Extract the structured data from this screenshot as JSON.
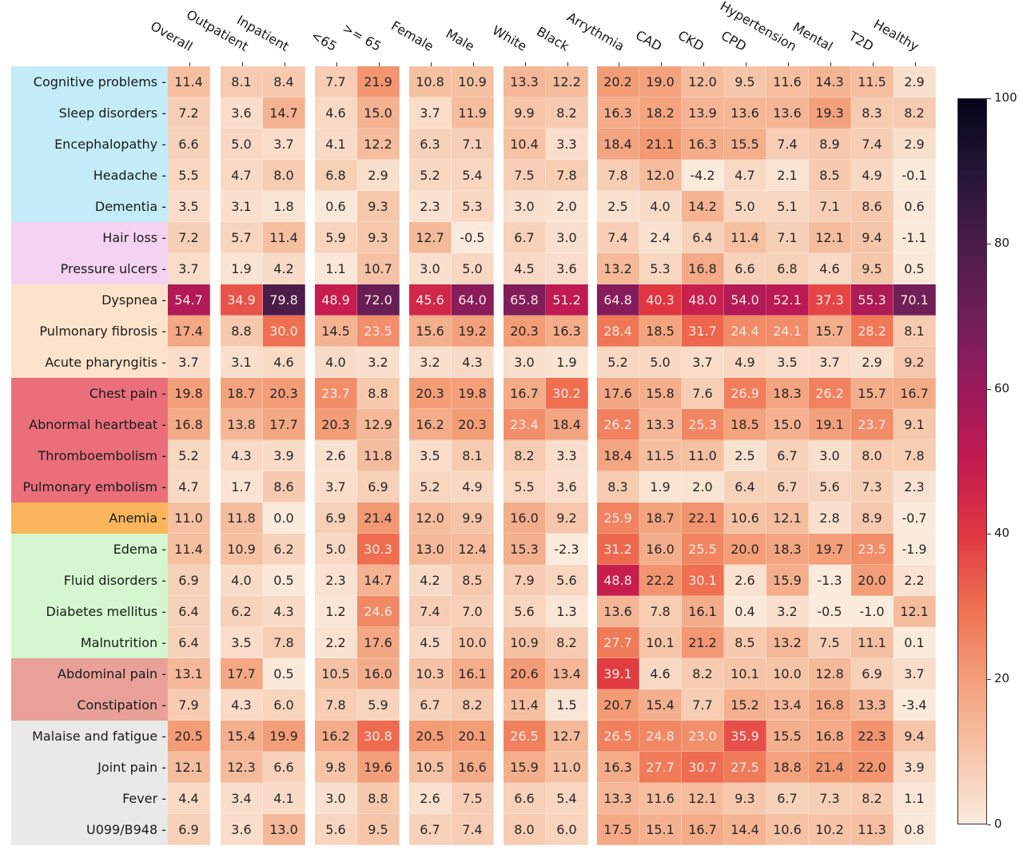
{
  "chart_data": {
    "type": "heatmap",
    "title": "",
    "xlabel": "",
    "ylabel": "",
    "colormap": "rocket_r",
    "vmin": 0,
    "vmax": 100,
    "colorbar_ticks": [
      "0",
      "20",
      "40",
      "60",
      "80",
      "100"
    ],
    "columns": [
      "Overall",
      "Outpatient",
      "Inpatient",
      "<65",
      ">= 65",
      "Female",
      "Male",
      "White",
      "Black",
      "Arrythmia",
      "CAD",
      "CKD",
      "CPD",
      "Hypertension",
      "Mental",
      "T2D",
      "Healthy"
    ],
    "column_groups": [
      [
        "Overall"
      ],
      [
        "Outpatient",
        "Inpatient"
      ],
      [
        "<65",
        ">= 65"
      ],
      [
        "Female",
        "Male"
      ],
      [
        "White",
        "Black"
      ],
      [
        "Arrythmia",
        "CAD",
        "CKD",
        "CPD",
        "Hypertension",
        "Mental",
        "T2D",
        "Healthy"
      ]
    ],
    "row_groups": [
      {
        "color": "#c3ecf7",
        "rows": [
          "Cognitive problems",
          "Sleep disorders",
          "Encephalopathy",
          "Headache",
          "Dementia"
        ]
      },
      {
        "color": "#f3d3f1",
        "rows": [
          "Hair loss",
          "Pressure ulcers"
        ]
      },
      {
        "color": "#fde3cb",
        "rows": [
          "Dyspnea",
          "Pulmonary fibrosis",
          "Acute pharyngitis"
        ]
      },
      {
        "color": "#ea6f7b",
        "rows": [
          "Chest pain",
          "Abnormal heartbeat",
          "Thromboembolism",
          "Pulmonary embolism"
        ]
      },
      {
        "color": "#fbb55c",
        "rows": [
          "Anemia"
        ]
      },
      {
        "color": "#d5f7d0",
        "rows": [
          "Edema",
          "Fluid disorders",
          "Diabetes mellitus",
          "Malnutrition"
        ]
      },
      {
        "color": "#e8a098",
        "rows": [
          "Abdominal pain",
          "Constipation"
        ]
      },
      {
        "color": "#e9e9e9",
        "rows": [
          "Malaise and fatigue",
          "Joint pain",
          "Fever",
          "U099/B948"
        ]
      }
    ],
    "values": [
      [
        "11.4",
        "8.1",
        "8.4",
        "7.7",
        "21.9",
        "10.8",
        "10.9",
        "13.3",
        "12.2",
        "20.2",
        "19.0",
        "12.0",
        "9.5",
        "11.6",
        "14.3",
        "11.5",
        "2.9"
      ],
      [
        "7.2",
        "3.6",
        "14.7",
        "4.6",
        "15.0",
        "3.7",
        "11.9",
        "9.9",
        "8.2",
        "16.3",
        "18.2",
        "13.9",
        "13.6",
        "13.6",
        "19.3",
        "8.3",
        "8.2"
      ],
      [
        "6.6",
        "5.0",
        "3.7",
        "4.1",
        "12.2",
        "6.3",
        "7.1",
        "10.4",
        "3.3",
        "18.4",
        "21.1",
        "16.3",
        "15.5",
        "7.4",
        "8.9",
        "7.4",
        "2.9"
      ],
      [
        "5.5",
        "4.7",
        "8.0",
        "6.8",
        "2.9",
        "5.2",
        "5.4",
        "7.5",
        "7.8",
        "7.8",
        "12.0",
        "-4.2",
        "4.7",
        "2.1",
        "8.5",
        "4.9",
        "-0.1"
      ],
      [
        "3.5",
        "3.1",
        "1.8",
        "0.6",
        "9.3",
        "2.3",
        "5.3",
        "3.0",
        "2.0",
        "2.5",
        "4.0",
        "14.2",
        "5.0",
        "5.1",
        "7.1",
        "8.6",
        "0.6"
      ],
      [
        "7.2",
        "5.7",
        "11.4",
        "5.9",
        "9.3",
        "12.7",
        "-0.5",
        "6.7",
        "3.0",
        "7.4",
        "2.4",
        "6.4",
        "11.4",
        "7.1",
        "12.1",
        "9.4",
        "-1.1"
      ],
      [
        "3.7",
        "1.9",
        "4.2",
        "1.1",
        "10.7",
        "3.0",
        "5.0",
        "4.5",
        "3.6",
        "13.2",
        "5.3",
        "16.8",
        "6.6",
        "6.8",
        "4.6",
        "9.5",
        "0.5"
      ],
      [
        "54.7",
        "34.9",
        "79.8",
        "48.9",
        "72.0",
        "45.6",
        "64.0",
        "65.8",
        "51.2",
        "64.8",
        "40.3",
        "48.0",
        "54.0",
        "52.1",
        "37.3",
        "55.3",
        "70.1"
      ],
      [
        "17.4",
        "8.8",
        "30.0",
        "14.5",
        "23.5",
        "15.6",
        "19.2",
        "20.3",
        "16.3",
        "28.4",
        "18.5",
        "31.7",
        "24.4",
        "24.1",
        "15.7",
        "28.2",
        "8.1"
      ],
      [
        "3.7",
        "3.1",
        "4.6",
        "4.0",
        "3.2",
        "3.2",
        "4.3",
        "3.0",
        "1.9",
        "5.2",
        "5.0",
        "3.7",
        "4.9",
        "3.5",
        "3.7",
        "2.9",
        "9.2"
      ],
      [
        "19.8",
        "18.7",
        "20.3",
        "23.7",
        "8.8",
        "20.3",
        "19.8",
        "16.7",
        "30.2",
        "17.6",
        "15.8",
        "7.6",
        "26.9",
        "18.3",
        "26.2",
        "15.7",
        "16.7"
      ],
      [
        "16.8",
        "13.8",
        "17.7",
        "20.3",
        "12.9",
        "16.2",
        "20.3",
        "23.4",
        "18.4",
        "26.2",
        "13.3",
        "25.3",
        "18.5",
        "15.0",
        "19.1",
        "23.7",
        "9.1"
      ],
      [
        "5.2",
        "4.3",
        "3.9",
        "2.6",
        "11.8",
        "3.5",
        "8.1",
        "8.2",
        "3.3",
        "18.4",
        "11.5",
        "11.0",
        "2.5",
        "6.7",
        "3.0",
        "8.0",
        "7.8"
      ],
      [
        "4.7",
        "1.7",
        "8.6",
        "3.7",
        "6.9",
        "5.2",
        "4.9",
        "5.5",
        "3.6",
        "8.3",
        "1.9",
        "2.0",
        "6.4",
        "6.7",
        "5.6",
        "7.3",
        "2.3"
      ],
      [
        "11.0",
        "11.8",
        "0.0",
        "6.9",
        "21.4",
        "12.0",
        "9.9",
        "16.0",
        "9.2",
        "25.9",
        "18.7",
        "22.1",
        "10.6",
        "12.1",
        "2.8",
        "8.9",
        "-0.7"
      ],
      [
        "11.4",
        "10.9",
        "6.2",
        "5.0",
        "30.3",
        "13.0",
        "12.4",
        "15.3",
        "-2.3",
        "31.2",
        "16.0",
        "25.5",
        "20.0",
        "18.3",
        "19.7",
        "23.5",
        "-1.9"
      ],
      [
        "6.9",
        "4.0",
        "0.5",
        "2.3",
        "14.7",
        "4.2",
        "8.5",
        "7.9",
        "5.6",
        "48.8",
        "22.2",
        "30.1",
        "2.6",
        "15.9",
        "-1.3",
        "20.0",
        "2.2"
      ],
      [
        "6.4",
        "6.2",
        "4.3",
        "1.2",
        "24.6",
        "7.4",
        "7.0",
        "5.6",
        "1.3",
        "13.6",
        "7.8",
        "16.1",
        "0.4",
        "3.2",
        "-0.5",
        "-1.0",
        "12.1"
      ],
      [
        "6.4",
        "3.5",
        "7.8",
        "2.2",
        "17.6",
        "4.5",
        "10.0",
        "10.9",
        "8.2",
        "27.7",
        "10.1",
        "21.2",
        "8.5",
        "13.2",
        "7.5",
        "11.1",
        "0.1"
      ],
      [
        "13.1",
        "17.7",
        "0.5",
        "10.5",
        "16.0",
        "10.3",
        "16.1",
        "20.6",
        "13.4",
        "39.1",
        "4.6",
        "8.2",
        "10.1",
        "10.0",
        "12.8",
        "6.9",
        "3.7"
      ],
      [
        "7.9",
        "4.3",
        "6.0",
        "7.8",
        "5.9",
        "6.7",
        "8.2",
        "11.4",
        "1.5",
        "20.7",
        "15.4",
        "7.7",
        "15.2",
        "13.4",
        "16.8",
        "13.3",
        "-3.4"
      ],
      [
        "20.5",
        "15.4",
        "19.9",
        "16.2",
        "30.8",
        "20.5",
        "20.1",
        "26.5",
        "12.7",
        "26.5",
        "24.8",
        "23.0",
        "35.9",
        "15.5",
        "16.8",
        "22.3",
        "9.4"
      ],
      [
        "12.1",
        "12.3",
        "6.6",
        "9.8",
        "19.6",
        "10.5",
        "16.6",
        "15.9",
        "11.0",
        "16.3",
        "27.7",
        "30.7",
        "27.5",
        "18.8",
        "21.4",
        "22.0",
        "3.9"
      ],
      [
        "4.4",
        "3.4",
        "4.1",
        "3.0",
        "8.8",
        "2.6",
        "7.5",
        "6.6",
        "5.4",
        "13.3",
        "11.6",
        "12.1",
        "9.3",
        "6.7",
        "7.3",
        "8.2",
        "1.1"
      ],
      [
        "6.9",
        "3.6",
        "13.0",
        "5.6",
        "9.5",
        "6.7",
        "7.4",
        "8.0",
        "6.0",
        "17.5",
        "15.1",
        "16.7",
        "14.4",
        "10.6",
        "10.2",
        "11.3",
        "0.8"
      ]
    ]
  }
}
